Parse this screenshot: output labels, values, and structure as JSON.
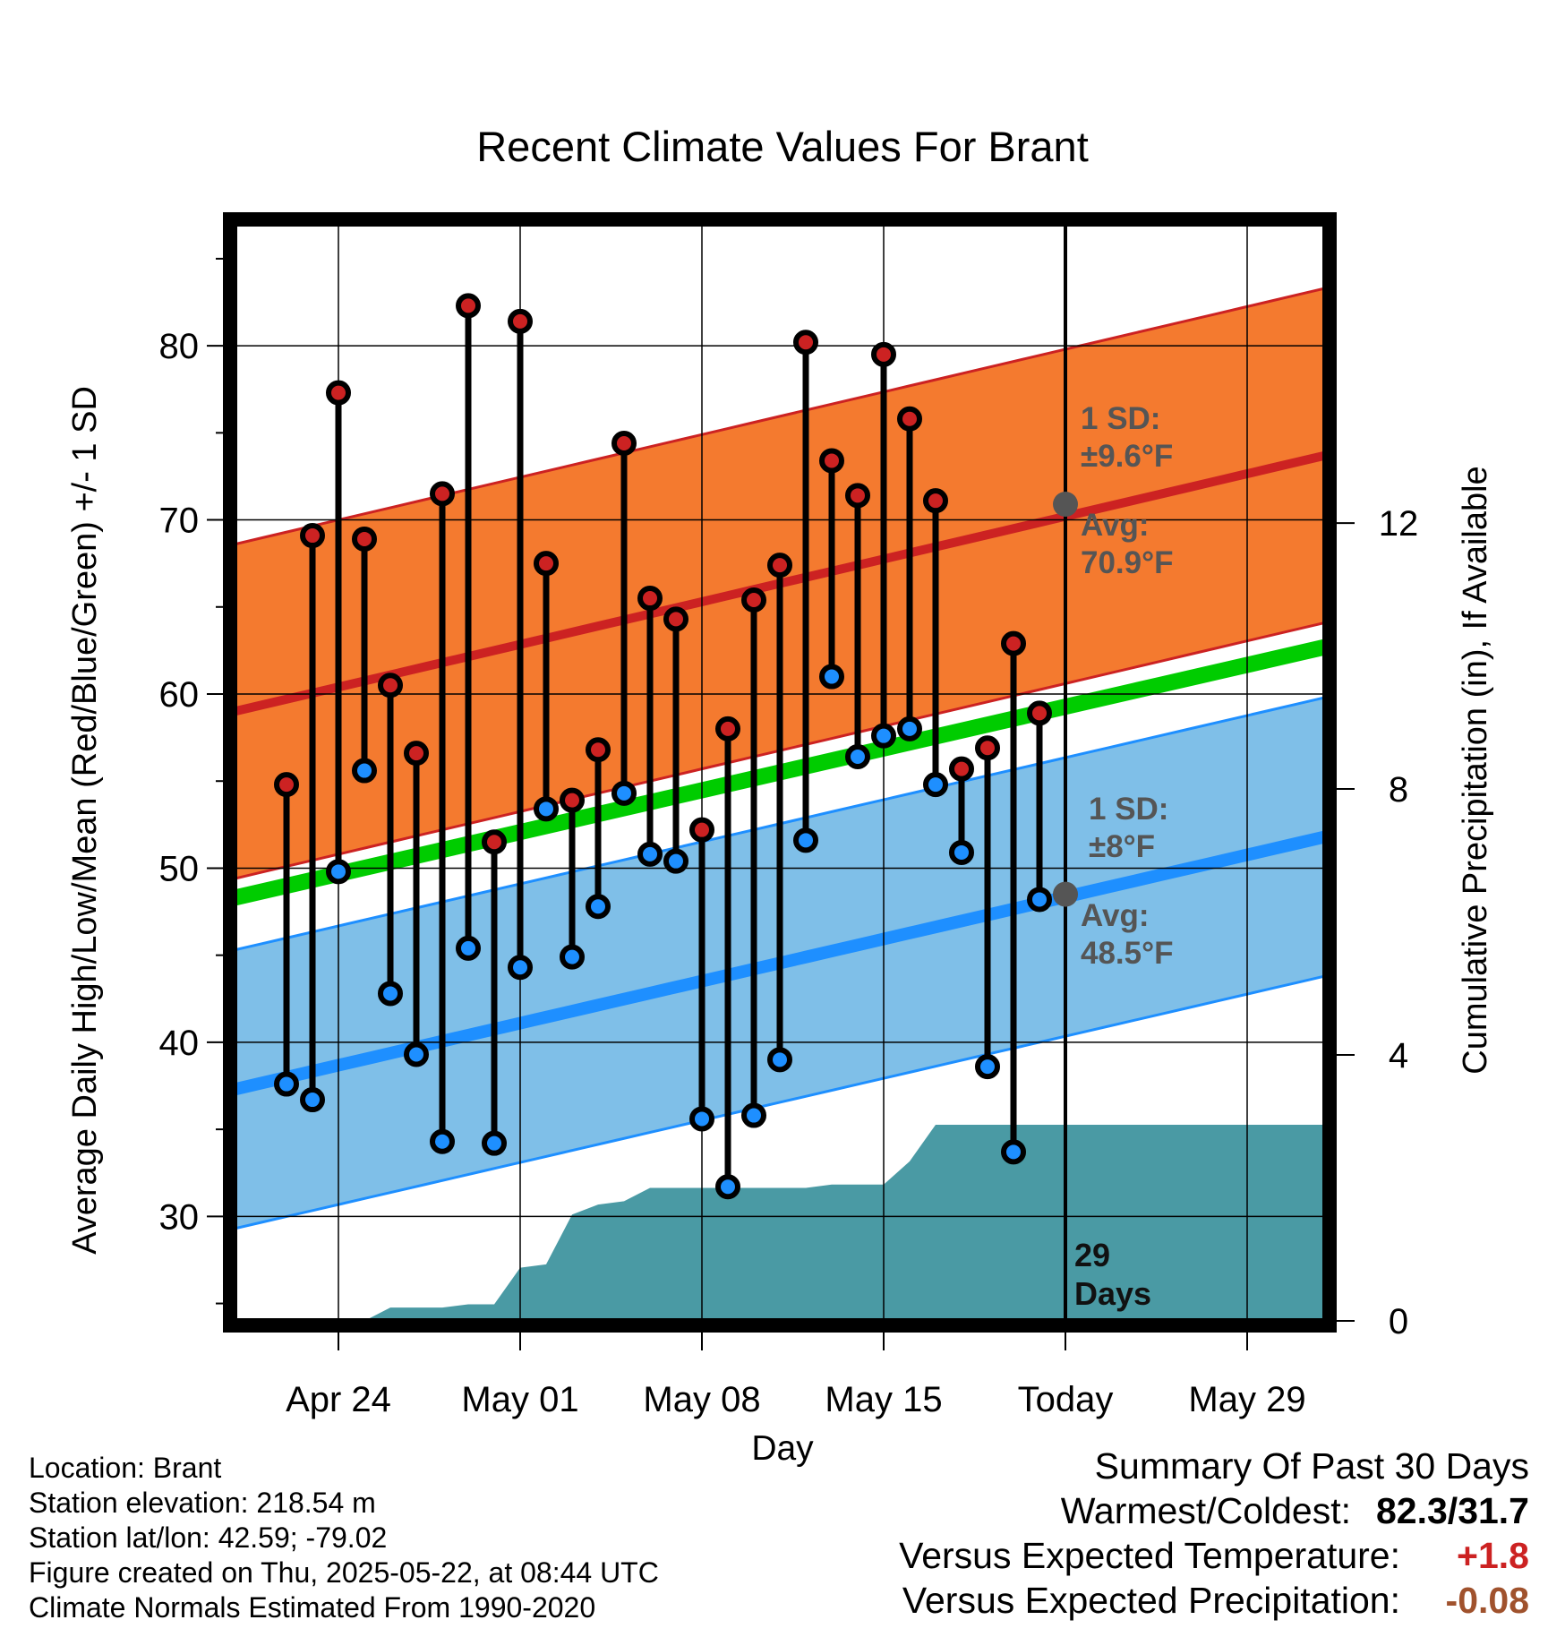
{
  "chart_data": {
    "type": "line",
    "title": "Recent Climate Values For Brant",
    "xlabel": "Day",
    "ylabel": "Average Daily High/Low/Mean (Red/Blue/Green) +/- 1 SD",
    "y2label": "Cumulative Precipitation (in), If Available",
    "x_range": [
      "2025-04-20",
      "2025-06-01"
    ],
    "ylim": [
      24,
      87
    ],
    "y2lim": [
      0,
      16.5
    ],
    "grid": true,
    "x_ticks": [
      {
        "date": "2025-04-24",
        "label": "Apr 24"
      },
      {
        "date": "2025-05-01",
        "label": "May 01"
      },
      {
        "date": "2025-05-08",
        "label": "May 08"
      },
      {
        "date": "2025-05-15",
        "label": "May 15"
      },
      {
        "date": "2025-05-22",
        "label": "Today"
      },
      {
        "date": "2025-05-29",
        "label": "May 29"
      }
    ],
    "y_ticks": [
      30,
      40,
      50,
      60,
      70,
      80
    ],
    "y2_ticks": [
      0,
      4,
      8,
      12
    ],
    "dates": [
      "2025-04-22",
      "2025-04-23",
      "2025-04-24",
      "2025-04-25",
      "2025-04-26",
      "2025-04-27",
      "2025-04-28",
      "2025-04-29",
      "2025-04-30",
      "2025-05-01",
      "2025-05-02",
      "2025-05-03",
      "2025-05-04",
      "2025-05-05",
      "2025-05-06",
      "2025-05-07",
      "2025-05-08",
      "2025-05-09",
      "2025-05-10",
      "2025-05-11",
      "2025-05-12",
      "2025-05-13",
      "2025-05-14",
      "2025-05-15",
      "2025-05-16",
      "2025-05-17",
      "2025-05-18",
      "2025-05-19",
      "2025-05-20",
      "2025-05-21"
    ],
    "series": [
      {
        "name": "High",
        "color": "#cc2222",
        "values": [
          54.8,
          69.1,
          77.3,
          68.9,
          60.5,
          56.6,
          71.5,
          82.3,
          51.5,
          81.4,
          67.5,
          53.9,
          56.8,
          74.4,
          65.5,
          64.3,
          52.2,
          58.0,
          65.4,
          67.4,
          80.2,
          73.4,
          71.4,
          79.5,
          75.8,
          71.1,
          55.7,
          56.9,
          62.9,
          58.9
        ]
      },
      {
        "name": "Low",
        "color": "#1e8fff",
        "values": [
          37.6,
          36.7,
          49.8,
          55.6,
          42.8,
          39.3,
          34.3,
          45.4,
          34.2,
          44.3,
          53.4,
          44.9,
          47.8,
          54.3,
          50.8,
          50.4,
          35.6,
          31.7,
          35.8,
          39.0,
          51.6,
          61.0,
          56.4,
          57.6,
          58.0,
          54.8,
          50.9,
          38.6,
          33.7,
          48.2
        ]
      },
      {
        "name": "Cumulative Precipitation",
        "values": [
          null,
          null,
          0.0,
          0.0,
          0.2,
          0.2,
          0.2,
          0.25,
          0.25,
          0.8,
          0.85,
          1.6,
          1.75,
          1.8,
          2.0,
          2.0,
          2.0,
          2.0,
          2.0,
          2.0,
          2.0,
          2.05,
          2.05,
          2.05,
          2.4,
          2.95,
          2.95,
          2.95,
          2.95,
          2.95
        ]
      }
    ],
    "normals": {
      "high_mean_start": 59.0,
      "high_mean_end": 73.7,
      "high_sd": 9.6,
      "low_mean_start": 37.3,
      "low_mean_end": 51.8,
      "low_sd": 8.0,
      "mean_start": 48.3,
      "mean_end": 62.7,
      "precip_extend_to": "2025-06-01"
    },
    "annotations": {
      "high_sd_label": [
        "1 SD:",
        "±9.6°F"
      ],
      "high_avg_label": [
        "Avg:",
        "70.9°F"
      ],
      "low_sd_label": [
        "1 SD:",
        "±8°F"
      ],
      "low_avg_label": [
        "Avg:",
        "48.5°F"
      ],
      "high_avg_today": 70.9,
      "low_avg_today": 48.5,
      "days_label": [
        "29",
        "Days"
      ]
    },
    "colors": {
      "high_band": "#f47a2f",
      "high_line": "#cc2222",
      "low_band": "#7fbfe8",
      "low_line": "#1e8fff",
      "mean_line": "#00cc00",
      "precip_fill": "#4a9aa4",
      "annotation": "#555555"
    }
  },
  "info": {
    "location": "Location: Brant",
    "elevation": "Station elevation: 218.54 m",
    "latlon": "Station lat/lon: 42.59; -79.02",
    "created": "Figure created on Thu, 2025-05-22, at 08:44 UTC",
    "normals": "Climate Normals Estimated From 1990-2020"
  },
  "summary": {
    "title": "Summary Of Past 30 Days",
    "warm_cold_label": "Warmest/Coldest:",
    "warm_cold_value": "82.3/31.7",
    "temp_label": "Versus Expected Temperature:",
    "temp_value": "+1.8",
    "temp_color": "#cc2222",
    "precip_label": "Versus Expected Precipitation:",
    "precip_value": "-0.08",
    "precip_color": "#a0522d"
  }
}
